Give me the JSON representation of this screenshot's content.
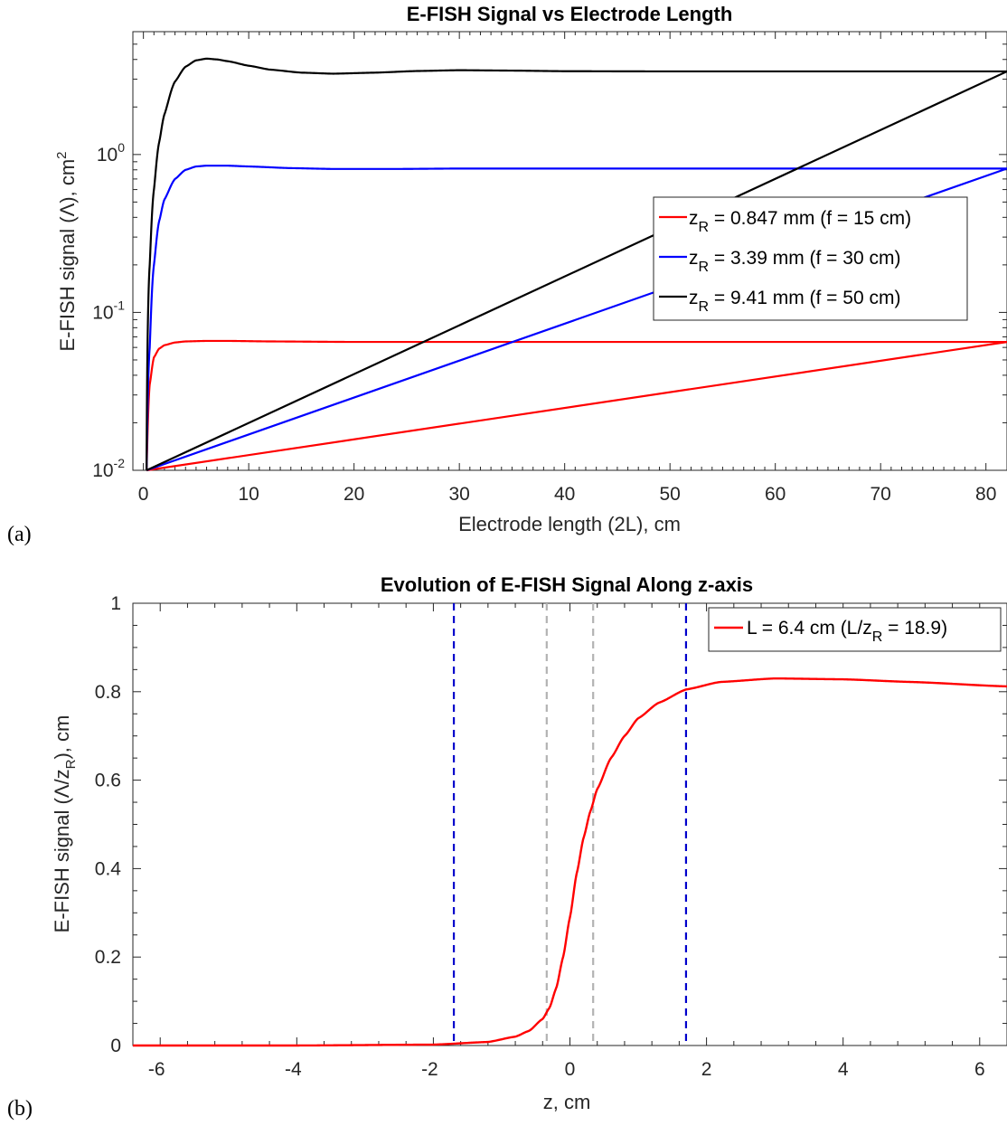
{
  "panels": {
    "a": "(a)",
    "b": "(b)"
  },
  "chart_data": [
    {
      "type": "line",
      "title": "E-FISH Signal vs Electrode Length",
      "xlabel": "Electrode length (2L), cm",
      "ylabel": "E-FISH signal (Λ), cm²",
      "ylabel_parts": [
        "E-FISH signal (Λ), cm",
        "2"
      ],
      "xlim": [
        -1,
        82
      ],
      "ylim": [
        0.01,
        6
      ],
      "yscale": "log",
      "xticks": [
        0,
        10,
        20,
        30,
        40,
        50,
        60,
        70,
        80
      ],
      "yticks": [
        {
          "value": 0.01,
          "base": "10",
          "exp": "-2"
        },
        {
          "value": 0.1,
          "base": "10",
          "exp": "-1"
        },
        {
          "value": 1,
          "base": "10",
          "exp": "0"
        }
      ],
      "grid": false,
      "legend_position": "right",
      "series": [
        {
          "name": "z_R = 0.847 mm (f = 15 cm)",
          "legend_main": "z",
          "legend_sub": "R",
          "legend_rest": " = 0.847 mm (f = 15 cm)",
          "color": "#ff0000",
          "x": [
            0.3,
            0.6,
            1,
            1.5,
            2,
            3,
            4,
            6,
            8,
            12,
            20,
            30,
            40,
            50,
            60,
            70,
            82
          ],
          "y": [
            0.01,
            0.035,
            0.052,
            0.059,
            0.062,
            0.0645,
            0.0655,
            0.066,
            0.066,
            0.0655,
            0.065,
            0.065,
            0.065,
            0.065,
            0.065,
            0.065,
            0.065
          ]
        },
        {
          "name": "z_R = 3.39 mm (f = 30 cm)",
          "legend_main": "z",
          "legend_sub": "R",
          "legend_rest": " = 3.39 mm   (f = 30 cm)",
          "color": "#0000ff",
          "x": [
            0.3,
            0.6,
            1,
            1.5,
            2,
            3,
            4,
            5,
            6,
            8,
            10,
            14,
            18,
            24,
            30,
            40,
            50,
            60,
            70,
            82
          ],
          "y": [
            0.01,
            0.06,
            0.2,
            0.38,
            0.52,
            0.7,
            0.8,
            0.84,
            0.85,
            0.85,
            0.84,
            0.82,
            0.81,
            0.81,
            0.815,
            0.815,
            0.815,
            0.815,
            0.815,
            0.815
          ]
        },
        {
          "name": "z_R = 9.41 mm (f = 50 cm)",
          "legend_main": "z",
          "legend_sub": "R",
          "legend_rest": " = 9.41 mm   (f = 50 cm)",
          "color": "#000000",
          "x": [
            0.3,
            0.6,
            1,
            1.5,
            2,
            3,
            4,
            5,
            6,
            7,
            8,
            10,
            12,
            15,
            18,
            22,
            26,
            30,
            35,
            40,
            50,
            60,
            70,
            82
          ],
          "y": [
            0.01,
            0.2,
            0.6,
            1.2,
            1.8,
            2.9,
            3.6,
            3.95,
            4.05,
            4.0,
            3.9,
            3.65,
            3.45,
            3.3,
            3.25,
            3.3,
            3.38,
            3.42,
            3.4,
            3.37,
            3.36,
            3.36,
            3.36,
            3.36
          ]
        }
      ]
    },
    {
      "type": "line",
      "title": "Evolution of E-FISH Signal Along z-axis",
      "xlabel": "z, cm",
      "ylabel_parts": [
        "E-FISH signal (Λ/z",
        "R",
        "), cm"
      ],
      "xlim": [
        -6.4,
        6.4
      ],
      "ylim": [
        0,
        1
      ],
      "yscale": "linear",
      "xticks": [
        -6,
        -4,
        -2,
        0,
        2,
        4,
        6
      ],
      "yticks": [
        0,
        0.2,
        0.4,
        0.6,
        0.8,
        1
      ],
      "ytick_labels": [
        "0",
        "0.2",
        "0.4",
        "0.6",
        "0.8",
        "1"
      ],
      "grid": false,
      "legend_position": "top-right",
      "vlines": [
        {
          "x": -1.7,
          "color": "#0000cc"
        },
        {
          "x": 1.7,
          "color": "#0000cc"
        },
        {
          "x": -0.34,
          "color": "#b3b3b3"
        },
        {
          "x": 0.34,
          "color": "#b3b3b3"
        }
      ],
      "series": [
        {
          "name": "L = 6.4 cm (L/z_R = 18.9)",
          "legend_main": "L = 6.4 cm (L/z",
          "legend_sub": "R",
          "legend_rest": " = 18.9)",
          "color": "#ff0000",
          "x": [
            -6.4,
            -4,
            -2,
            -1.2,
            -0.8,
            -0.6,
            -0.4,
            -0.3,
            -0.2,
            -0.1,
            0,
            0.1,
            0.2,
            0.3,
            0.4,
            0.6,
            0.8,
            1.0,
            1.3,
            1.7,
            2.2,
            3.0,
            4.0,
            5.0,
            6.4
          ],
          "y": [
            0,
            0,
            0.002,
            0.008,
            0.02,
            0.033,
            0.06,
            0.085,
            0.13,
            0.2,
            0.29,
            0.39,
            0.47,
            0.53,
            0.58,
            0.65,
            0.7,
            0.74,
            0.775,
            0.805,
            0.822,
            0.83,
            0.828,
            0.822,
            0.812
          ]
        }
      ]
    }
  ]
}
